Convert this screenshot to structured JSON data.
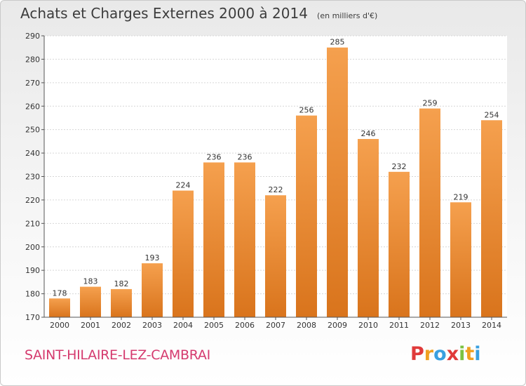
{
  "header": {
    "title": "Achats et Charges Externes 2000 à 2014",
    "subtitle": "(en milliers d'€)"
  },
  "footer": {
    "place": "SAINT-HILAIRE-LEZ-CAMBRAI",
    "logo_letters": [
      "P",
      "r",
      "o",
      "x",
      "i",
      "t",
      "i"
    ],
    "logo_colors": [
      "#e03a3a",
      "#f0a020",
      "#3aa0e0",
      "#e03a3a",
      "#7cc242",
      "#f0a020",
      "#3aa0e0"
    ]
  },
  "chart_data": {
    "type": "bar",
    "categories": [
      "2000",
      "2001",
      "2002",
      "2003",
      "2004",
      "2005",
      "2006",
      "2007",
      "2008",
      "2009",
      "2010",
      "2011",
      "2012",
      "2013",
      "2014"
    ],
    "values": [
      178,
      183,
      182,
      193,
      224,
      236,
      236,
      222,
      256,
      285,
      246,
      232,
      259,
      219,
      254
    ],
    "title": "Achats et Charges Externes 2000 à 2014",
    "xlabel": "",
    "ylabel": "",
    "ylim": [
      170,
      290
    ],
    "yticks": [
      170,
      180,
      190,
      200,
      210,
      220,
      230,
      240,
      250,
      260,
      270,
      280,
      290
    ],
    "grid": true,
    "bar_color_top": "#f5a04e",
    "bar_color_bottom": "#d9741c"
  }
}
